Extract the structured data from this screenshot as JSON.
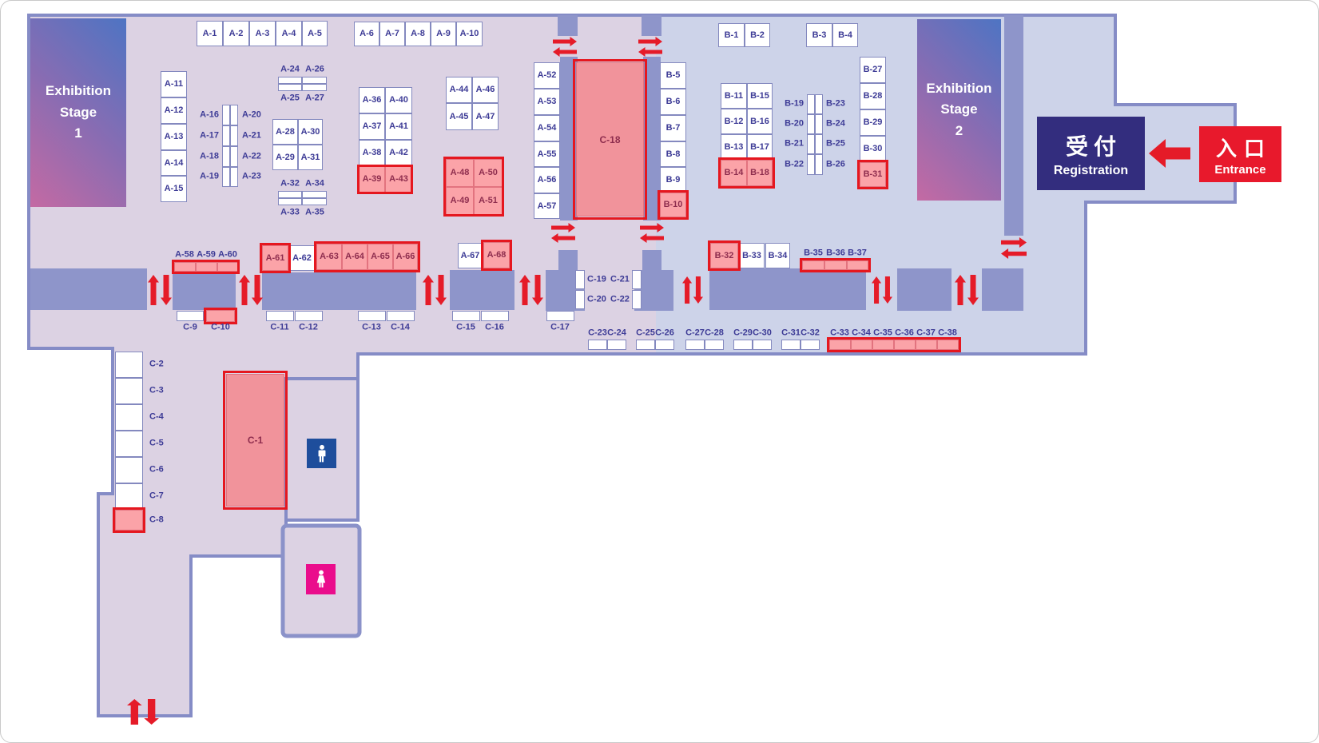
{
  "map": {
    "stage1": {
      "lines": [
        "Exhibition",
        "Stage",
        "1"
      ]
    },
    "stage2": {
      "lines": [
        "Exhibition",
        "Stage",
        "2"
      ]
    },
    "registration": {
      "jp": "受付",
      "en": "Registration"
    },
    "entrance": {
      "jp": "入口",
      "en": "Entrance"
    }
  },
  "booths": {
    "A": [
      "A-1",
      "A-2",
      "A-3",
      "A-4",
      "A-5",
      "A-6",
      "A-7",
      "A-8",
      "A-9",
      "A-10",
      "A-11",
      "A-12",
      "A-13",
      "A-14",
      "A-15",
      "A-16",
      "A-17",
      "A-18",
      "A-19",
      "A-20",
      "A-21",
      "A-22",
      "A-23",
      "A-24",
      "A-25",
      "A-26",
      "A-27",
      "A-28",
      "A-29",
      "A-30",
      "A-31",
      "A-32",
      "A-33",
      "A-34",
      "A-35",
      "A-36",
      "A-37",
      "A-38",
      "A-39",
      "A-40",
      "A-41",
      "A-42",
      "A-43",
      "A-44",
      "A-45",
      "A-46",
      "A-47",
      "A-48",
      "A-49",
      "A-50",
      "A-51",
      "A-52",
      "A-53",
      "A-54",
      "A-55",
      "A-56",
      "A-57",
      "A-58",
      "A-59",
      "A-60",
      "A-61",
      "A-62",
      "A-63",
      "A-64",
      "A-65",
      "A-66",
      "A-67",
      "A-68"
    ],
    "B": [
      "B-1",
      "B-2",
      "B-3",
      "B-4",
      "B-5",
      "B-6",
      "B-7",
      "B-8",
      "B-9",
      "B-10",
      "B-11",
      "B-12",
      "B-13",
      "B-14",
      "B-15",
      "B-16",
      "B-17",
      "B-18",
      "B-19",
      "B-20",
      "B-21",
      "B-22",
      "B-23",
      "B-24",
      "B-25",
      "B-26",
      "B-27",
      "B-28",
      "B-29",
      "B-30",
      "B-31",
      "B-32",
      "B-33",
      "B-34",
      "B-35",
      "B-36",
      "B-37"
    ],
    "C": [
      "C-1",
      "C-2",
      "C-3",
      "C-4",
      "C-5",
      "C-6",
      "C-7",
      "C-8",
      "C-9",
      "C-10",
      "C-11",
      "C-12",
      "C-13",
      "C-14",
      "C-15",
      "C-16",
      "C-17",
      "C-18",
      "C-19",
      "C-20",
      "C-21",
      "C-22",
      "C-23",
      "C-24",
      "C-25",
      "C-26",
      "C-27",
      "C-28",
      "C-29",
      "C-30",
      "C-31",
      "C-32",
      "C-33",
      "C-34",
      "C-35",
      "C-36",
      "C-37",
      "C-38"
    ],
    "highlighted": [
      "A-39",
      "A-43",
      "A-48",
      "A-49",
      "A-50",
      "A-51",
      "A-58",
      "A-59",
      "A-60",
      "A-61",
      "A-63",
      "A-64",
      "A-65",
      "A-66",
      "A-68",
      "B-10",
      "B-14",
      "B-18",
      "B-31",
      "B-32",
      "B-35",
      "B-36",
      "B-37",
      "C-1",
      "C-8",
      "C-10",
      "C-18",
      "C-33",
      "C-34",
      "C-35",
      "C-36",
      "C-37",
      "C-38"
    ]
  },
  "restrooms": [
    {
      "id": "mens",
      "icon": "man-pictogram",
      "color": "#1e4e9c"
    },
    {
      "id": "womens",
      "icon": "woman-pictogram",
      "color": "#ea0d8c"
    }
  ],
  "icons": {
    "two_way_vertical_arrow": "↑↓",
    "two_way_horizontal_arrow": "⇄",
    "entrance_direction_arrow": "←"
  },
  "colors": {
    "highlight_red": "#e5171f",
    "highlight_fill": "#fba3a8",
    "large_booth_fill": "#f1939b",
    "booth_border": "#8489bf",
    "label_blue": "#3d3b96",
    "label_maroon": "#8e2d4e",
    "wall": "#858cc6",
    "block": "#8e95ca",
    "floor_pink": "#dcd2e3",
    "floor_blue": "#cdd3e9",
    "registration_bg": "#332d7e",
    "entrance_bg": "#e8192c",
    "arrow_red": "#e51b28"
  }
}
